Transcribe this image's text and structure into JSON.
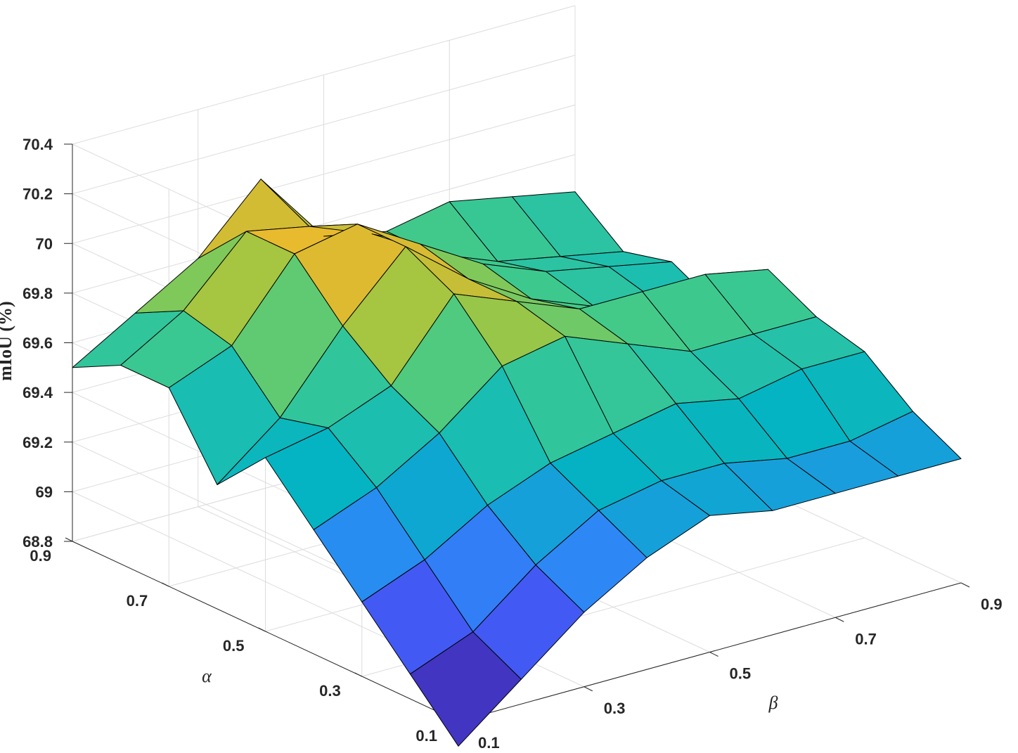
{
  "chart_data": {
    "type": "surface",
    "title": "",
    "xlabel": "β",
    "ylabel": "α",
    "zlabel": "mIoU (%)",
    "x_ticks": [
      "0.1",
      "0.3",
      "0.5",
      "0.7",
      "0.9"
    ],
    "y_ticks": [
      "0.1",
      "0.3",
      "0.5",
      "0.7",
      "0.9"
    ],
    "z_ticks": [
      "68.8",
      "69",
      "69.2",
      "69.4",
      "69.6",
      "69.8",
      "70",
      "70.2",
      "70.4"
    ],
    "x": [
      0.1,
      0.2,
      0.3,
      0.4,
      0.5,
      0.6,
      0.7,
      0.8,
      0.9
    ],
    "y": [
      0.1,
      0.2,
      0.3,
      0.4,
      0.5,
      0.6,
      0.7,
      0.8,
      0.9
    ],
    "xlim": [
      0.1,
      0.9
    ],
    "ylim": [
      0.1,
      0.9
    ],
    "zlim": [
      68.8,
      70.4
    ],
    "clim": [
      68.8,
      70.2
    ],
    "colormap": "parula",
    "grid": true,
    "z": [
      [
        68.7,
        68.9,
        69.1,
        69.25,
        69.35,
        69.3,
        69.3,
        69.3,
        69.3
      ],
      [
        68.9,
        69.0,
        69.2,
        69.35,
        69.4,
        69.4,
        69.35,
        69.35,
        69.4
      ],
      [
        69.1,
        69.2,
        69.35,
        69.45,
        69.5,
        69.55,
        69.5,
        69.55,
        69.55
      ],
      [
        69.3,
        69.4,
        69.55,
        69.75,
        69.8,
        69.7,
        69.6,
        69.6,
        69.6
      ],
      [
        69.5,
        69.55,
        69.65,
        69.95,
        69.85,
        69.75,
        69.75,
        69.75,
        69.7
      ],
      [
        69.3,
        69.5,
        69.8,
        70.05,
        69.85,
        69.7,
        69.6,
        69.55,
        69.45
      ],
      [
        69.6,
        69.7,
        70.0,
        70.05,
        69.9,
        69.75,
        69.65,
        69.6,
        69.55
      ],
      [
        69.6,
        69.75,
        70.0,
        69.95,
        69.85,
        69.7,
        69.6,
        69.55,
        69.5
      ],
      [
        69.5,
        69.65,
        69.8,
        70.05,
        69.75,
        69.7,
        69.75,
        69.7,
        69.65
      ]
    ]
  }
}
